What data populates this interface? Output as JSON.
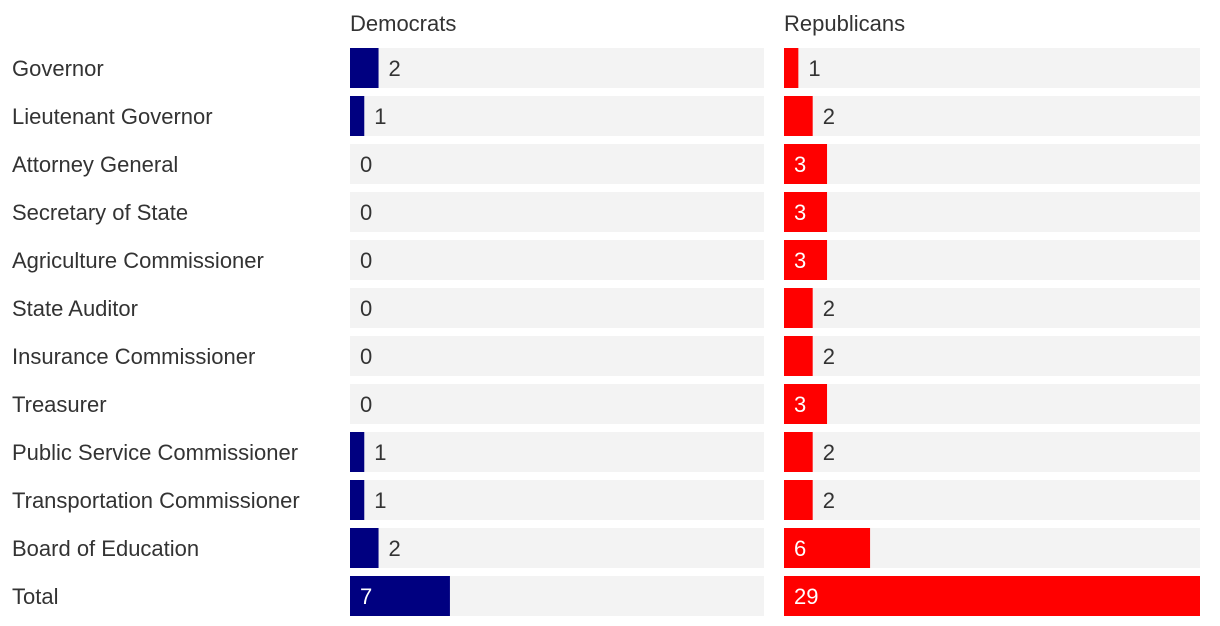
{
  "chart_data": {
    "type": "bar",
    "categories": [
      "Governor",
      "Lieutenant Governor",
      "Attorney General",
      "Secretary of State",
      "Agriculture Commissioner",
      "State Auditor",
      "Insurance Commissioner",
      "Treasurer",
      "Public Service Commissioner",
      "Transportation Commissioner",
      "Board of Education",
      "Total"
    ],
    "series": [
      {
        "name": "Democrats",
        "color": "#000080",
        "values": [
          2,
          1,
          0,
          0,
          0,
          0,
          0,
          0,
          1,
          1,
          2,
          7
        ],
        "xlim": [
          0,
          29
        ]
      },
      {
        "name": "Republicans",
        "color": "#ff0000",
        "values": [
          1,
          2,
          3,
          3,
          3,
          2,
          2,
          3,
          2,
          2,
          6,
          29
        ],
        "xlim": [
          0,
          29
        ]
      }
    ],
    "track_color": "#f3f3f3",
    "grid": false,
    "legend": "none"
  }
}
